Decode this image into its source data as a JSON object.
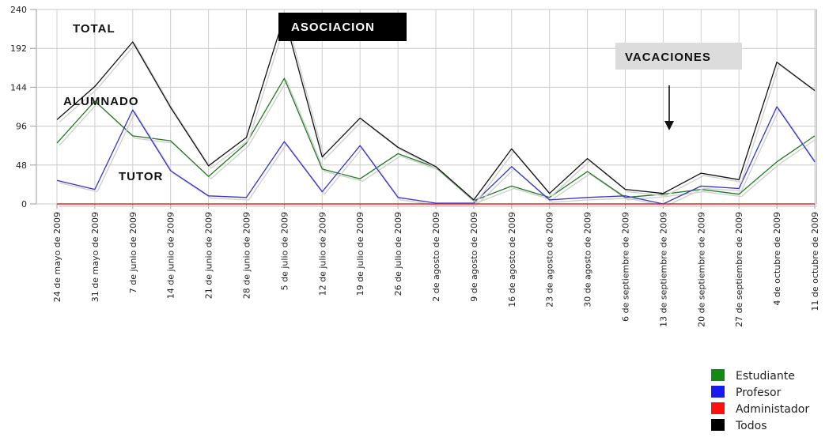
{
  "chart_data": {
    "type": "line",
    "title": "",
    "xlabel": "",
    "ylabel": "",
    "ylim": [
      0,
      240
    ],
    "yticks": [
      0,
      48,
      96,
      144,
      192,
      240
    ],
    "grid": true,
    "legend_position": "bottom-right",
    "categories": [
      "24 de mayo de 2009",
      "31 de mayo de 2009",
      "7 de junio de 2009",
      "14 de junio de 2009",
      "21 de junio de 2009",
      "28 de junio de 2009",
      "5 de julio de 2009",
      "12 de julio de 2009",
      "19 de julio de 2009",
      "26 de julio de 2009",
      "2 de agosto de 2009",
      "9 de agosto de 2009",
      "16 de agosto de 2009",
      "23 de agosto de 2009",
      "30 de agosto de 2009",
      "6 de septiembre de 2009",
      "13 de septiembre de 2009",
      "20 de septiembre de 2009",
      "27 de septiembre de 2009",
      "4 de octubre de 2009",
      "11 de octubre de 2009"
    ],
    "series": [
      {
        "name": "Estudiante",
        "color": "#1f7a1f",
        "values": [
          75,
          127,
          84,
          78,
          34,
          75,
          155,
          43,
          31,
          62,
          45,
          4,
          22,
          8,
          40,
          8,
          12,
          18,
          12,
          52,
          84
        ]
      },
      {
        "name": "Profesor",
        "color": "#3333cc",
        "values": [
          29,
          18,
          116,
          41,
          10,
          8,
          77,
          15,
          72,
          8,
          1,
          1,
          46,
          5,
          8,
          10,
          0,
          22,
          19,
          120,
          52
        ]
      },
      {
        "name": "Administador",
        "color": "#ee2222",
        "values": [
          0,
          0,
          0,
          0,
          0,
          0,
          0,
          0,
          0,
          0,
          0,
          0,
          0,
          0,
          0,
          0,
          0,
          0,
          0,
          0,
          0
        ]
      },
      {
        "name": "Todos",
        "color": "#111111",
        "values": [
          104,
          145,
          200,
          119,
          47,
          82,
          232,
          58,
          106,
          70,
          46,
          5,
          68,
          13,
          56,
          18,
          13,
          38,
          30,
          175,
          140
        ]
      }
    ],
    "annotations": [
      {
        "text": "TOTAL",
        "style": "plain"
      },
      {
        "text": "ASOCIACION",
        "style": "inverse"
      },
      {
        "text": "VACACIONES",
        "style": "boxed",
        "arrow": "down"
      },
      {
        "text": "ALUMNADO",
        "style": "plain"
      },
      {
        "text": "TUTOR",
        "style": "plain"
      }
    ]
  }
}
